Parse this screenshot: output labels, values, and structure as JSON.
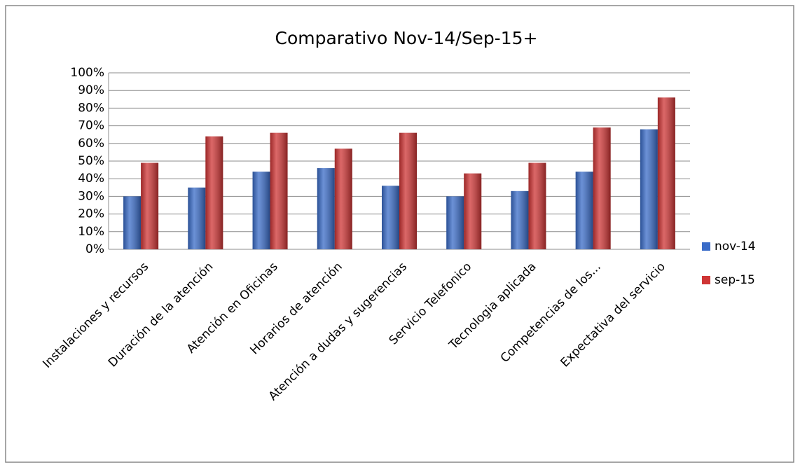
{
  "chart_data": {
    "type": "bar",
    "title": "Comparativo Nov-14/Sep-15+",
    "categories": [
      "Instalaciones y recursos",
      "Duración de la atención",
      "Atención en Oficinas",
      "Horarios de atención",
      "Atención a dudas y sugerencias",
      "Servicio Telefonico",
      "Tecnologia aplicada",
      "Competencias de los...",
      "Expectativa del servicio"
    ],
    "series": [
      {
        "name": "nov-14",
        "color": "#3a6cc8",
        "values": [
          30,
          35,
          44,
          46,
          36,
          30,
          33,
          44,
          68
        ]
      },
      {
        "name": "sep-15",
        "color": "#cf3535",
        "values": [
          49,
          64,
          66,
          57,
          66,
          43,
          49,
          69,
          86
        ]
      }
    ],
    "ylim": [
      0,
      100
    ],
    "yticks": [
      {
        "value": 0,
        "label": "0%"
      },
      {
        "value": 10,
        "label": "10%"
      },
      {
        "value": 20,
        "label": "20%"
      },
      {
        "value": 30,
        "label": "30%"
      },
      {
        "value": 40,
        "label": "40%"
      },
      {
        "value": 50,
        "label": "50%"
      },
      {
        "value": 60,
        "label": "60%"
      },
      {
        "value": 70,
        "label": "70%"
      },
      {
        "value": 80,
        "label": "80%"
      },
      {
        "value": 90,
        "label": "90%"
      },
      {
        "value": 100,
        "label": "100%"
      }
    ],
    "grid": true,
    "legend": "right"
  }
}
